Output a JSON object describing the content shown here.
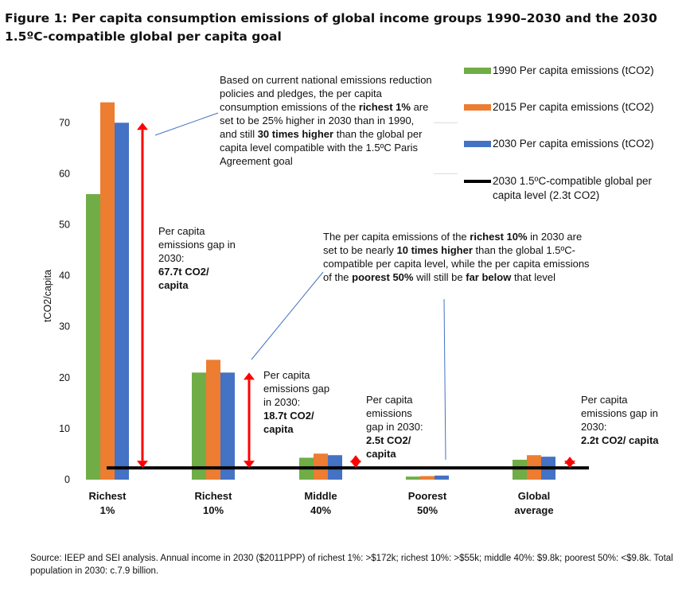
{
  "title": "Figure 1: Per capita consumption emissions of global income groups 1990–2030 and the 2030 1.5ºC-compatible global per capita goal",
  "colors": {
    "s1990": "#70ad47",
    "s2015": "#ed7d31",
    "s2030": "#4472c4",
    "arrow": "#ff0000",
    "line": "#000000"
  },
  "legend": {
    "s1990": "1990 Per capita emissions (tCO2)",
    "s2015": "2015 Per capita emissions (tCO2)",
    "s2030": "2030 Per capita emissions (tCO2)",
    "goal": "2030 1.5ºC-compatible global per capita level (2.3t CO2)"
  },
  "annotations": {
    "top_callout": {
      "p1": "Based on current national emissions reduction policies and pledges, the per capita consumption emissions of the",
      "b1": "richest 1%",
      "p2": "are set to be 25% higher in 2030 than in 1990, and still",
      "b2": "30 times higher",
      "p3": "than the global per capita level compatible with the 1.5ºC Paris Agreement goal"
    },
    "mid_callout": {
      "p1": "The per capita emissions of the",
      "b1": "richest 10%",
      "p2": "in 2030 are set to be nearly",
      "b2": "10 times higher",
      "p3": "than the global 1.5ºC-compatible per capita level, while the per capita emissions of the",
      "b3": "poorest 50%",
      "p4": "will still be",
      "b4": "far below",
      "p5": "that level"
    },
    "gaps": [
      {
        "label": "Per capita emissions gap in 2030:",
        "value": "67.7t CO2/ capita"
      },
      {
        "label": "Per capita emissions gap in 2030:",
        "value": "18.7t CO2/ capita"
      },
      {
        "label": "Per capita emissions gap in 2030:",
        "value": "2.5t CO2/ capita"
      },
      {
        "label": "Per capita emissions gap in 2030:",
        "value": "2.2t CO2/ capita"
      }
    ]
  },
  "source": "Source: IEEP and SEI analysis. Annual income in 2030 ($2011PPP) of richest 1%: >$172k; richest 10%: >$55k; middle 40%: $9.8k; poorest 50%: <$9.8k. Total population in 2030: c.7.9 billion.",
  "chart_data": {
    "type": "bar",
    "title": "Figure 1: Per capita consumption emissions of global income groups 1990–2030 and the 2030 1.5ºC-compatible global per capita goal",
    "xlabel": "",
    "ylabel": "tCO2/capita",
    "ylim": [
      0,
      70
    ],
    "yticks": [
      0,
      10,
      20,
      30,
      40,
      50,
      60,
      70
    ],
    "grid": false,
    "legend_position": "top-right",
    "categories": [
      {
        "line1": "Richest",
        "line2": "1%"
      },
      {
        "line1": "Richest",
        "line2": "10%"
      },
      {
        "line1": "Middle",
        "line2": "40%"
      },
      {
        "line1": "Poorest",
        "line2": "50%"
      },
      {
        "line1": "Global",
        "line2": "average"
      }
    ],
    "series": [
      {
        "key": "s1990",
        "name": "1990 Per capita emissions (tCO2)",
        "values": [
          56,
          21,
          4.3,
          0.6,
          3.9
        ]
      },
      {
        "key": "s2015",
        "name": "2015 Per capita emissions (tCO2)",
        "values": [
          74,
          23.5,
          5.1,
          0.7,
          4.8
        ]
      },
      {
        "key": "s2030",
        "name": "2030 Per capita emissions (tCO2)",
        "values": [
          70,
          21,
          4.8,
          0.8,
          4.5
        ]
      }
    ],
    "reference_line": {
      "name": "2030 1.5ºC-compatible global per capita level (2.3t CO2)",
      "value": 2.3
    },
    "gap_arrows": [
      {
        "category": 0,
        "from": 2.3,
        "to": 70
      },
      {
        "category": 1,
        "from": 2.3,
        "to": 21
      },
      {
        "category": 2,
        "from": 2.3,
        "to": 4.8
      },
      {
        "category": 4,
        "from": 2.3,
        "to": 4.5
      }
    ]
  }
}
